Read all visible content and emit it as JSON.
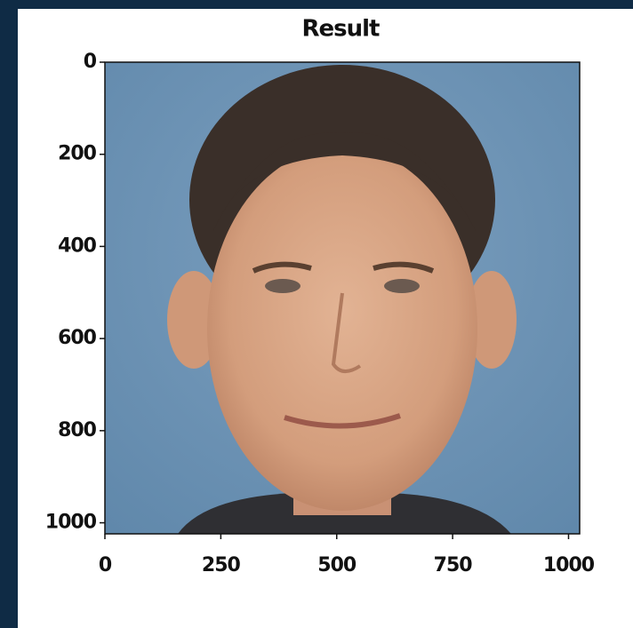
{
  "chart_data": {
    "type": "image",
    "title": "Result",
    "xlim": [
      0,
      1024
    ],
    "ylim": [
      1024,
      0
    ],
    "xticks": [
      0,
      250,
      500,
      750,
      1000
    ],
    "yticks": [
      0,
      200,
      400,
      600,
      800,
      1000
    ]
  }
}
